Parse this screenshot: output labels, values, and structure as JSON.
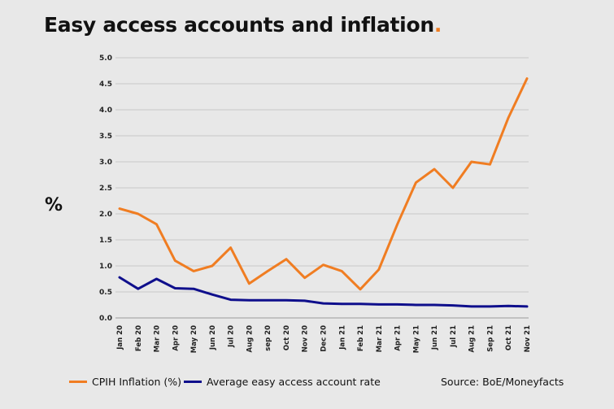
{
  "title": "Easy access accounts and inflation",
  "title_dot": ".",
  "ylabel": "%",
  "source": "Source: BoE/Moneyfacts",
  "colors": {
    "orange": "#f07d22",
    "navy": "#0f0f8c",
    "grid": "#c8c8c8"
  },
  "chart_data": {
    "type": "line",
    "title": "Easy access accounts and inflation",
    "ylabel": "%",
    "xlabel": "",
    "ylim": [
      0,
      5
    ],
    "yticks": [
      "0.0",
      "0.5",
      "1.0",
      "1.5",
      "2.0",
      "2.5",
      "3.0",
      "3.5",
      "4.0",
      "4.5",
      "5.0"
    ],
    "grid": true,
    "legend_position": "bottom",
    "categories": [
      "Jan 20",
      "Feb 20",
      "Mar 20",
      "Apr 20",
      "May 20",
      "Jun 20",
      "Jul 20",
      "Aug 20",
      "sep 20",
      "Oct 20",
      "Nov 20",
      "Dec 20",
      "Jan 21",
      "Feb 21",
      "Mar 21",
      "Apr 21",
      "May 21",
      "Jun 21",
      "Jul 21",
      "Aug 21",
      "Sep 21",
      "Oct 21",
      "Nov 21"
    ],
    "series": [
      {
        "name": "CPIH Inflation (%)",
        "color": "#f07d22",
        "values": [
          2.1,
          2.0,
          1.8,
          1.1,
          0.9,
          1.0,
          1.35,
          0.66,
          0.9,
          1.13,
          0.77,
          1.02,
          0.9,
          0.55,
          0.93,
          1.8,
          2.6,
          2.86,
          2.5,
          3.0,
          2.95,
          3.85,
          4.6
        ]
      },
      {
        "name": "Average easy access account rate",
        "color": "#0f0f8c",
        "values": [
          0.78,
          0.56,
          0.75,
          0.57,
          0.56,
          0.45,
          0.35,
          0.34,
          0.34,
          0.34,
          0.33,
          0.28,
          0.27,
          0.27,
          0.26,
          0.26,
          0.25,
          0.25,
          0.24,
          0.22,
          0.22,
          0.23,
          0.22
        ]
      }
    ]
  }
}
